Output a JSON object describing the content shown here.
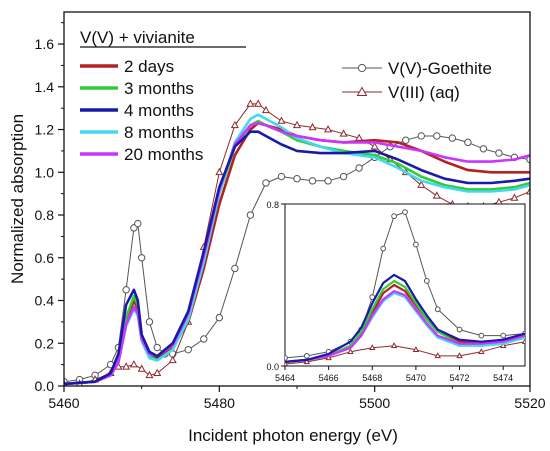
{
  "chart_data": [
    {
      "type": "line",
      "xlabel": "Incident photon energy (eV)",
      "ylabel": "Normalized absorption",
      "xlim": [
        5460,
        5520
      ],
      "ylim": [
        0.0,
        1.75
      ],
      "xticks": [
        5460,
        5480,
        5500,
        5520
      ],
      "yticks": [
        0.0,
        0.2,
        0.4,
        0.6,
        0.8,
        1.0,
        1.2,
        1.4,
        1.6
      ],
      "grid": false,
      "legend_title": "V(V) + vivianite",
      "legend_placement": "top-left",
      "series": [
        {
          "name": "2 days",
          "color": "#b22222",
          "marker": "none",
          "x": [
            5460,
            5464,
            5466,
            5467,
            5468,
            5469,
            5469.5,
            5470,
            5471,
            5472,
            5474,
            5476,
            5478,
            5480,
            5482,
            5484,
            5485,
            5486,
            5488,
            5490,
            5493,
            5496,
            5500,
            5503,
            5506,
            5509,
            5512,
            5515,
            5518,
            5520
          ],
          "y": [
            0.01,
            0.02,
            0.05,
            0.12,
            0.3,
            0.4,
            0.36,
            0.22,
            0.15,
            0.13,
            0.18,
            0.3,
            0.55,
            0.85,
            1.08,
            1.2,
            1.23,
            1.22,
            1.2,
            1.17,
            1.15,
            1.14,
            1.15,
            1.14,
            1.1,
            1.05,
            1.01,
            1.0,
            1.0,
            1.0
          ]
        },
        {
          "name": "3 months",
          "color": "#33cc33",
          "marker": "none",
          "x": [
            5460,
            5464,
            5466,
            5467,
            5468,
            5469,
            5469.5,
            5470,
            5471,
            5472,
            5474,
            5476,
            5478,
            5480,
            5482,
            5484,
            5485,
            5486,
            5488,
            5490,
            5493,
            5496,
            5500,
            5503,
            5506,
            5509,
            5512,
            5515,
            5518,
            5520
          ],
          "y": [
            0.01,
            0.02,
            0.05,
            0.13,
            0.32,
            0.42,
            0.38,
            0.22,
            0.14,
            0.12,
            0.17,
            0.32,
            0.6,
            0.9,
            1.12,
            1.22,
            1.24,
            1.22,
            1.19,
            1.15,
            1.12,
            1.1,
            1.08,
            1.04,
            0.98,
            0.94,
            0.92,
            0.92,
            0.93,
            0.95
          ]
        },
        {
          "name": "4 months",
          "color": "#1a1aa8",
          "marker": "none",
          "x": [
            5460,
            5464,
            5466,
            5467,
            5468,
            5469,
            5469.5,
            5470,
            5471,
            5472,
            5474,
            5476,
            5478,
            5480,
            5482,
            5484,
            5485,
            5486,
            5488,
            5490,
            5493,
            5496,
            5500,
            5503,
            5506,
            5509,
            5512,
            5515,
            5518,
            5520
          ],
          "y": [
            0.01,
            0.02,
            0.06,
            0.15,
            0.38,
            0.45,
            0.4,
            0.24,
            0.16,
            0.14,
            0.2,
            0.35,
            0.63,
            0.93,
            1.12,
            1.19,
            1.19,
            1.17,
            1.13,
            1.1,
            1.09,
            1.09,
            1.1,
            1.06,
            1.01,
            0.97,
            0.95,
            0.95,
            0.96,
            0.97
          ]
        },
        {
          "name": "8 months",
          "color": "#44d8f0",
          "marker": "none",
          "x": [
            5460,
            5464,
            5466,
            5467,
            5468,
            5469,
            5469.5,
            5470,
            5471,
            5472,
            5474,
            5476,
            5478,
            5480,
            5482,
            5484,
            5485,
            5486,
            5488,
            5490,
            5493,
            5496,
            5500,
            5503,
            5506,
            5509,
            5512,
            5515,
            5518,
            5520
          ],
          "y": [
            0.01,
            0.02,
            0.05,
            0.11,
            0.28,
            0.36,
            0.33,
            0.21,
            0.13,
            0.12,
            0.17,
            0.31,
            0.58,
            0.9,
            1.14,
            1.25,
            1.27,
            1.25,
            1.21,
            1.16,
            1.12,
            1.09,
            1.07,
            1.02,
            0.96,
            0.93,
            0.91,
            0.91,
            0.92,
            0.94
          ]
        },
        {
          "name": "20 months",
          "color": "#cc33ff",
          "marker": "none",
          "x": [
            5460,
            5464,
            5466,
            5467,
            5468,
            5469,
            5469.5,
            5470,
            5471,
            5472,
            5474,
            5476,
            5478,
            5480,
            5482,
            5484,
            5485,
            5486,
            5488,
            5490,
            5493,
            5496,
            5500,
            5503,
            5506,
            5509,
            5512,
            5515,
            5518,
            5520
          ],
          "y": [
            0.01,
            0.02,
            0.05,
            0.11,
            0.29,
            0.37,
            0.34,
            0.22,
            0.15,
            0.14,
            0.19,
            0.34,
            0.61,
            0.92,
            1.13,
            1.22,
            1.23,
            1.22,
            1.19,
            1.17,
            1.15,
            1.14,
            1.14,
            1.12,
            1.1,
            1.07,
            1.05,
            1.05,
            1.06,
            1.08
          ]
        },
        {
          "name": "V(V)-Goethite",
          "color": "#555555",
          "marker": "circle",
          "x": [
            5460,
            5462,
            5464,
            5466,
            5467,
            5468,
            5469,
            5469.5,
            5470,
            5471,
            5472,
            5473,
            5474,
            5476,
            5478,
            5480,
            5482,
            5484,
            5486,
            5488,
            5490,
            5492,
            5494,
            5496,
            5498,
            5500,
            5502,
            5504,
            5506,
            5508,
            5510,
            5512,
            5514,
            5516,
            5518,
            5520
          ],
          "y": [
            0.02,
            0.03,
            0.05,
            0.1,
            0.18,
            0.45,
            0.74,
            0.76,
            0.6,
            0.3,
            0.18,
            0.15,
            0.15,
            0.17,
            0.22,
            0.32,
            0.55,
            0.8,
            0.95,
            0.98,
            0.97,
            0.96,
            0.96,
            0.98,
            1.02,
            1.07,
            1.12,
            1.15,
            1.17,
            1.17,
            1.16,
            1.14,
            1.11,
            1.09,
            1.07,
            1.06
          ]
        },
        {
          "name": "V(III) (aq)",
          "color": "#8b2a2a",
          "marker": "triangle",
          "x": [
            5460,
            5462,
            5464,
            5466,
            5467,
            5468,
            5469,
            5470,
            5471,
            5472,
            5474,
            5476,
            5478,
            5480,
            5482,
            5484,
            5485,
            5486,
            5488,
            5490,
            5492,
            5494,
            5496,
            5498,
            5500,
            5502,
            5504,
            5506,
            5508,
            5510,
            5512,
            5514,
            5516,
            5518,
            5520
          ],
          "y": [
            0.01,
            0.01,
            0.03,
            0.06,
            0.09,
            0.09,
            0.1,
            0.08,
            0.05,
            0.06,
            0.12,
            0.3,
            0.65,
            1.0,
            1.22,
            1.32,
            1.32,
            1.29,
            1.24,
            1.22,
            1.21,
            1.2,
            1.18,
            1.16,
            1.12,
            1.06,
            1.0,
            0.94,
            0.89,
            0.85,
            0.84,
            0.84,
            0.86,
            0.88,
            0.91
          ]
        }
      ]
    },
    {
      "type": "line",
      "role": "inset",
      "xlim": [
        5464,
        5475
      ],
      "ylim": [
        0.0,
        0.8
      ],
      "xticks": [
        5464,
        5466,
        5468,
        5470,
        5472,
        5474
      ],
      "yticks": [
        0.0,
        0.8
      ],
      "series": [
        {
          "name": "2 days",
          "color": "#b22222",
          "x": [
            5464,
            5465,
            5466,
            5467,
            5467.5,
            5468,
            5468.5,
            5469,
            5469.5,
            5470,
            5470.5,
            5471,
            5472,
            5473,
            5474,
            5475
          ],
          "y": [
            0.02,
            0.03,
            0.05,
            0.1,
            0.16,
            0.26,
            0.36,
            0.4,
            0.37,
            0.3,
            0.23,
            0.17,
            0.12,
            0.11,
            0.12,
            0.15
          ]
        },
        {
          "name": "3 months",
          "color": "#33cc33",
          "x": [
            5464,
            5465,
            5466,
            5467,
            5467.5,
            5468,
            5468.5,
            5469,
            5469.5,
            5470,
            5470.5,
            5471,
            5472,
            5473,
            5474,
            5475
          ],
          "y": [
            0.02,
            0.03,
            0.05,
            0.1,
            0.17,
            0.28,
            0.38,
            0.42,
            0.39,
            0.31,
            0.23,
            0.17,
            0.11,
            0.1,
            0.11,
            0.14
          ]
        },
        {
          "name": "4 months",
          "color": "#1a1aa8",
          "x": [
            5464,
            5465,
            5466,
            5467,
            5467.5,
            5468,
            5468.5,
            5469,
            5469.5,
            5470,
            5470.5,
            5471,
            5472,
            5473,
            5474,
            5475
          ],
          "y": [
            0.02,
            0.03,
            0.06,
            0.12,
            0.19,
            0.31,
            0.41,
            0.45,
            0.42,
            0.33,
            0.25,
            0.18,
            0.13,
            0.12,
            0.13,
            0.16
          ]
        },
        {
          "name": "8 months",
          "color": "#44d8f0",
          "x": [
            5464,
            5465,
            5466,
            5467,
            5467.5,
            5468,
            5468.5,
            5469,
            5469.5,
            5470,
            5470.5,
            5471,
            5472,
            5473,
            5474,
            5475
          ],
          "y": [
            0.02,
            0.03,
            0.05,
            0.09,
            0.15,
            0.24,
            0.32,
            0.36,
            0.34,
            0.27,
            0.2,
            0.14,
            0.1,
            0.1,
            0.11,
            0.14
          ]
        },
        {
          "name": "20 months",
          "color": "#cc33ff",
          "x": [
            5464,
            5465,
            5466,
            5467,
            5467.5,
            5468,
            5468.5,
            5469,
            5469.5,
            5470,
            5470.5,
            5471,
            5472,
            5473,
            5474,
            5475
          ],
          "y": [
            0.02,
            0.03,
            0.05,
            0.09,
            0.15,
            0.25,
            0.33,
            0.37,
            0.35,
            0.28,
            0.21,
            0.15,
            0.11,
            0.11,
            0.12,
            0.15
          ]
        },
        {
          "name": "V(V)-Goethite",
          "color": "#555555",
          "marker": "circle",
          "x": [
            5464,
            5465,
            5466,
            5467,
            5467.5,
            5468,
            5468.5,
            5469,
            5469.5,
            5470,
            5470.5,
            5471,
            5472,
            5473,
            5474,
            5475
          ],
          "y": [
            0.04,
            0.05,
            0.07,
            0.12,
            0.18,
            0.34,
            0.58,
            0.74,
            0.76,
            0.6,
            0.42,
            0.28,
            0.18,
            0.15,
            0.15,
            0.16
          ]
        },
        {
          "name": "V(III) (aq)",
          "color": "#8b2a2a",
          "marker": "triangle",
          "x": [
            5464,
            5465,
            5466,
            5467,
            5468,
            5469,
            5470,
            5471,
            5472,
            5473,
            5474,
            5475
          ],
          "y": [
            0.01,
            0.02,
            0.04,
            0.07,
            0.09,
            0.1,
            0.08,
            0.05,
            0.05,
            0.07,
            0.1,
            0.12
          ]
        }
      ]
    }
  ]
}
